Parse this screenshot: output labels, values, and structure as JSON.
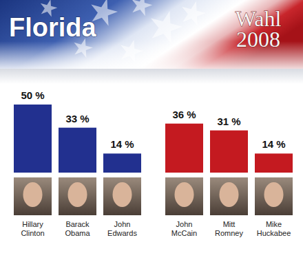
{
  "header": {
    "title": "Florida",
    "logo": [
      "Wahl",
      "2008"
    ]
  },
  "chart_data": [
    {
      "type": "bar",
      "categories": [
        "Hillary Clinton",
        "Barack Obama",
        "John Edwards"
      ],
      "values": [
        50,
        33,
        14
      ],
      "value_labels": [
        "50 %",
        "33 %",
        "14 %"
      ],
      "color": "#22308f",
      "ylim": [
        0,
        50
      ],
      "data_labels": true,
      "tick_labels": false,
      "grid": false
    },
    {
      "type": "bar",
      "categories": [
        "John McCain",
        "Mitt Romney",
        "Mike Huckabee"
      ],
      "values": [
        36,
        31,
        14
      ],
      "value_labels": [
        "36 %",
        "31 %",
        "14 %"
      ],
      "color": "#c41a20",
      "ylim": [
        0,
        50
      ],
      "data_labels": true,
      "tick_labels": false,
      "grid": false
    }
  ]
}
